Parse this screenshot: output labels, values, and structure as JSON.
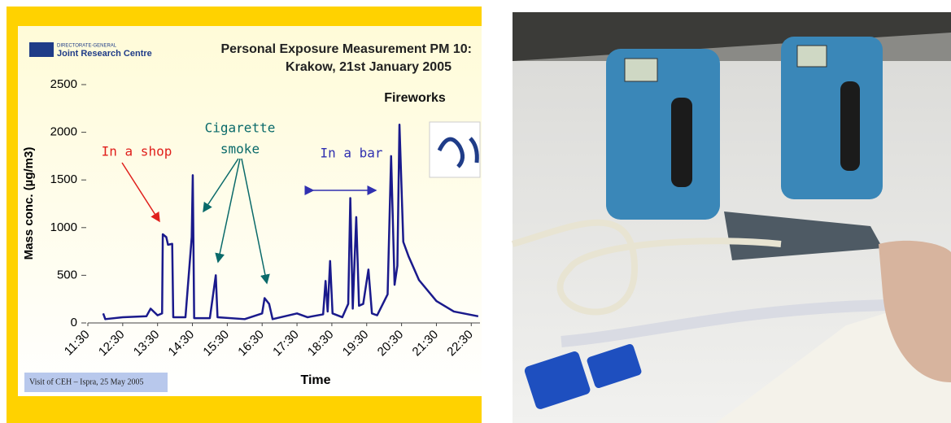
{
  "chart_data": {
    "type": "line",
    "title": "Personal Exposure Measurement PM 10:",
    "subtitle": "Krakow, 21st January 2005",
    "x_label": "Time",
    "y_label": "Mass conc. (µg/m3)",
    "x": [
      11.94,
      12.0,
      12.5,
      13.18,
      13.3,
      13.5,
      13.63,
      13.65,
      13.75,
      13.8,
      13.92,
      13.95,
      14.3,
      14.48,
      14.51,
      14.55,
      15.0,
      15.17,
      15.22,
      16.0,
      16.5,
      16.57,
      16.7,
      16.8,
      17.5,
      17.8,
      18.25,
      18.32,
      18.38,
      18.45,
      18.52,
      18.8,
      18.97,
      19.03,
      19.1,
      19.2,
      19.28,
      19.4,
      19.55,
      19.65,
      19.8,
      20.1,
      20.2,
      20.3,
      20.38,
      20.44,
      20.55,
      20.7,
      21.0,
      21.5,
      22.0,
      22.7
    ],
    "series": [
      {
        "color": "#1a1a8c",
        "values": [
          100,
          40,
          60,
          70,
          150,
          80,
          100,
          930,
          900,
          820,
          830,
          60,
          60,
          900,
          1550,
          50,
          50,
          500,
          60,
          40,
          100,
          260,
          200,
          40,
          100,
          60,
          90,
          440,
          120,
          650,
          100,
          60,
          200,
          1310,
          150,
          1110,
          180,
          200,
          560,
          100,
          80,
          300,
          1750,
          400,
          600,
          2080,
          850,
          700,
          450,
          230,
          120,
          70
        ]
      }
    ],
    "xlim": [
      11.5,
      22.75
    ],
    "xticks": [
      {
        "value": 11.5,
        "label": "11:30"
      },
      {
        "value": 12.5,
        "label": "12:30"
      },
      {
        "value": 13.5,
        "label": "13:30"
      },
      {
        "value": 14.5,
        "label": "14:30"
      },
      {
        "value": 15.5,
        "label": "15:30"
      },
      {
        "value": 16.5,
        "label": "16:30"
      },
      {
        "value": 17.5,
        "label": "17:30"
      },
      {
        "value": 18.5,
        "label": "18:30"
      },
      {
        "value": 19.5,
        "label": "19:30"
      },
      {
        "value": 20.5,
        "label": "20:30"
      },
      {
        "value": 21.5,
        "label": "21:30"
      },
      {
        "value": 22.5,
        "label": "22:30"
      }
    ],
    "ylim": [
      0,
      2500
    ],
    "yticks": [
      0,
      500,
      1000,
      1500,
      2000,
      2500
    ],
    "annotations": [
      "In a shop",
      "Cigarette",
      "smoke",
      "In a bar",
      "Fireworks"
    ]
  },
  "slide": {
    "org_line": "DIRECTORATE-GENERAL",
    "org_name": "Joint Research Centre",
    "footer": "Visit of CEH – Ispra, 25 May 2005"
  }
}
